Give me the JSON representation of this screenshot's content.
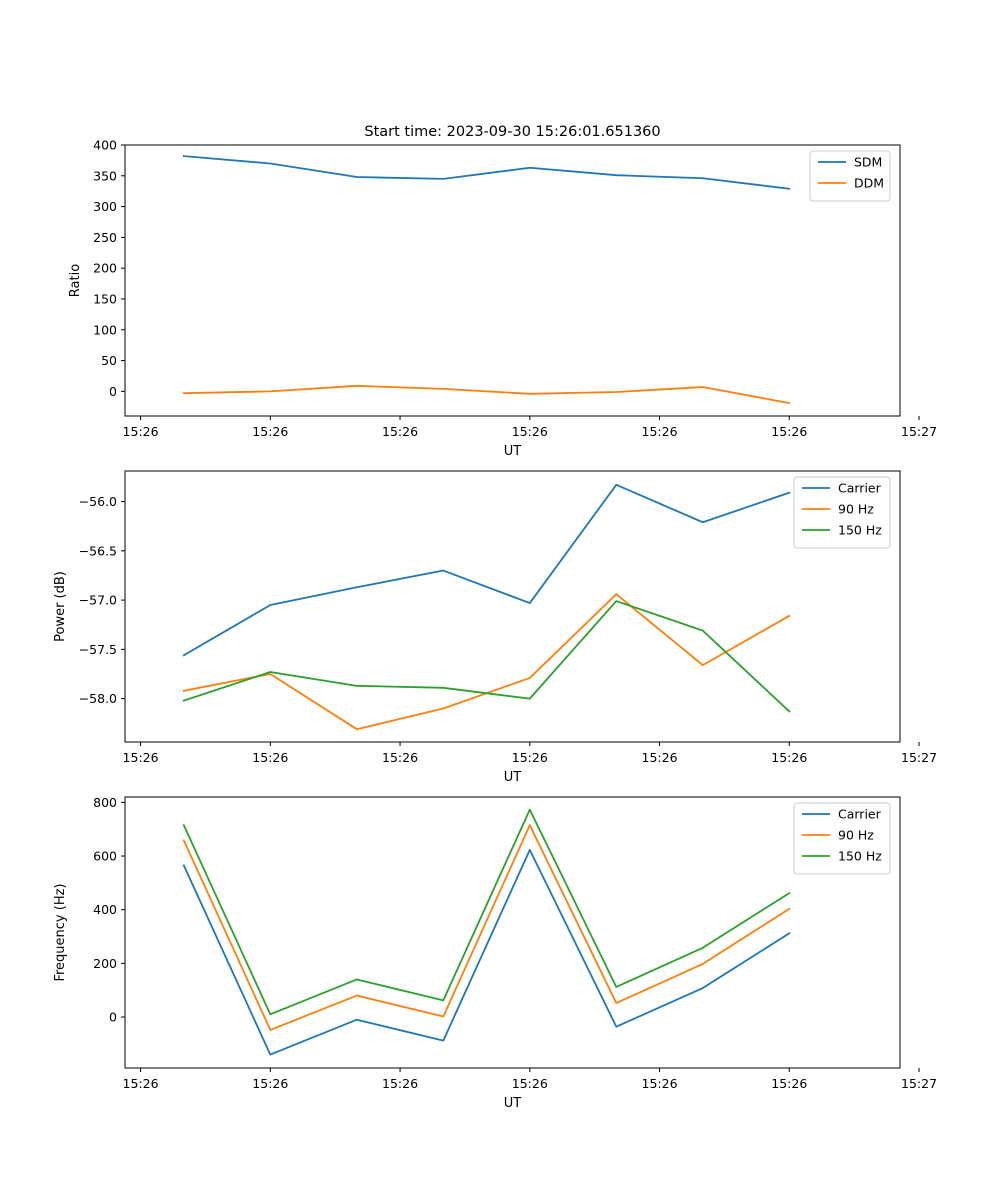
{
  "chart_data": [
    {
      "type": "line",
      "title": "Start time: 2023-09-30 15:26:01.651360",
      "xlabel": "UT",
      "ylabel": "Ratio",
      "ylim": [
        -40,
        400
      ],
      "yticks": [
        0,
        50,
        100,
        150,
        200,
        250,
        300,
        350,
        400
      ],
      "xlim": [
        -0.18,
        8.78
      ],
      "x": [
        0.5,
        1.5,
        2.5,
        3.5,
        4.5,
        5.5,
        6.5,
        7.5
      ],
      "xticks": [
        0,
        1.5,
        3,
        4.5,
        6,
        7.5,
        9
      ],
      "xtick_labels": [
        "15:26",
        "15:26",
        "15:26",
        "15:26",
        "15:26",
        "15:26",
        "15:27"
      ],
      "legend_position": "top-right",
      "series": [
        {
          "name": "SDM",
          "color": "#1f77b4",
          "values": [
            382,
            370,
            348,
            345,
            363,
            351,
            346,
            329
          ]
        },
        {
          "name": "DDM",
          "color": "#ff7f0e",
          "values": [
            -3,
            0,
            9,
            4,
            -4,
            -1,
            7,
            -19
          ]
        }
      ]
    },
    {
      "type": "line",
      "title": "",
      "xlabel": "UT",
      "ylabel": "Power (dB)",
      "ylim": [
        -58.44,
        -55.69
      ],
      "yticks": [
        -58.0,
        -57.5,
        -57.0,
        -56.5,
        -56.0
      ],
      "ytick_labels": [
        "−58.0",
        "−57.5",
        "−57.0",
        "−56.5",
        "−56.0"
      ],
      "xlim": [
        -0.18,
        8.78
      ],
      "x": [
        0.5,
        1.5,
        2.5,
        3.5,
        4.5,
        5.5,
        6.5,
        7.5
      ],
      "xticks": [
        0,
        1.5,
        3,
        4.5,
        6,
        7.5,
        9
      ],
      "xtick_labels": [
        "15:26",
        "15:26",
        "15:26",
        "15:26",
        "15:26",
        "15:26",
        "15:27"
      ],
      "legend_position": "top-right",
      "series": [
        {
          "name": "Carrier",
          "color": "#1f77b4",
          "values": [
            -57.56,
            -57.05,
            -56.87,
            -56.7,
            -57.03,
            -55.83,
            -56.21,
            -55.91
          ]
        },
        {
          "name": "90 Hz",
          "color": "#ff7f0e",
          "values": [
            -57.92,
            -57.75,
            -58.31,
            -58.1,
            -57.79,
            -56.94,
            -57.66,
            -57.16
          ]
        },
        {
          "name": "150 Hz",
          "color": "#2ca02c",
          "values": [
            -58.02,
            -57.73,
            -57.87,
            -57.89,
            -58.0,
            -57.01,
            -57.31,
            -58.13
          ]
        }
      ]
    },
    {
      "type": "line",
      "title": "",
      "xlabel": "UT",
      "ylabel": "Frequency (Hz)",
      "ylim": [
        -190,
        820
      ],
      "yticks": [
        0,
        200,
        400,
        600,
        800
      ],
      "xlim": [
        -0.18,
        8.78
      ],
      "x": [
        0.5,
        1.5,
        2.5,
        3.5,
        4.5,
        5.5,
        6.5,
        7.5
      ],
      "xticks": [
        0,
        1.5,
        3,
        4.5,
        6,
        7.5,
        9
      ],
      "xtick_labels": [
        "15:26",
        "15:26",
        "15:26",
        "15:26",
        "15:26",
        "15:26",
        "15:27"
      ],
      "legend_position": "top-right",
      "series": [
        {
          "name": "Carrier",
          "color": "#1f77b4",
          "values": [
            565,
            -140,
            -10,
            -88,
            623,
            -36,
            108,
            312
          ]
        },
        {
          "name": "90 Hz",
          "color": "#ff7f0e",
          "values": [
            658,
            -48,
            80,
            2,
            715,
            52,
            198,
            403
          ]
        },
        {
          "name": "150 Hz",
          "color": "#2ca02c",
          "values": [
            715,
            10,
            140,
            62,
            773,
            112,
            258,
            462
          ]
        }
      ]
    }
  ]
}
